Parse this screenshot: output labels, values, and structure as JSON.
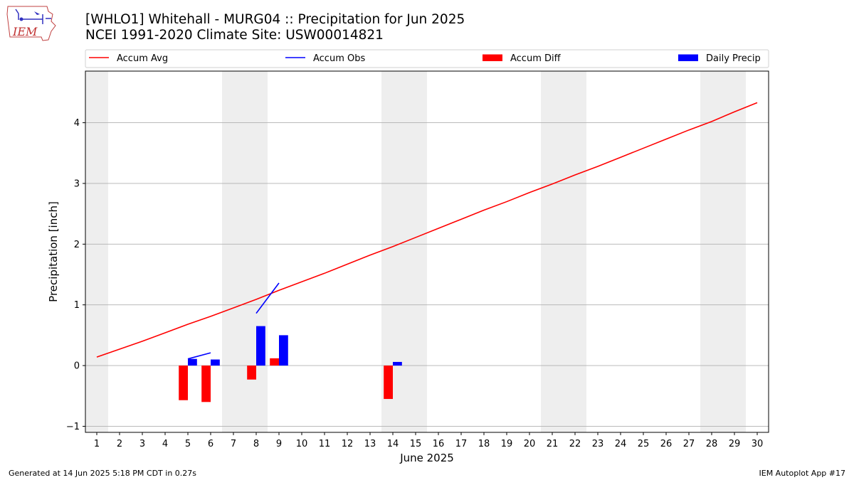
{
  "header": {
    "title_line1": "[WHLO1] Whitehall - MURG04 :: Precipitation for Jun 2025",
    "title_line2": "NCEI 1991-2020 Climate Site: USW00014821",
    "logo_text": "IEM"
  },
  "footer": {
    "generated": "Generated at 14 Jun 2025 5:18 PM CDT in 0.27s",
    "app": "IEM Autoplot App #17"
  },
  "colors": {
    "accum_avg": "#ff0000",
    "accum_obs": "#0000ff",
    "accum_diff": "#ff0000",
    "daily_precip": "#0000ff",
    "weekend_shade": "#eeeeee",
    "grid": "#b0b0b0"
  },
  "chart_data": {
    "type": "bar",
    "title": "[WHLO1] Whitehall - MURG04 :: Precipitation for Jun 2025",
    "xlabel": "June 2025",
    "ylabel": "Precipitation [inch]",
    "xlim": [
      0.5,
      30.5
    ],
    "ylim": [
      -1.1,
      4.85
    ],
    "x_ticks": [
      1,
      2,
      3,
      4,
      5,
      6,
      7,
      8,
      9,
      10,
      11,
      12,
      13,
      14,
      15,
      16,
      17,
      18,
      19,
      20,
      21,
      22,
      23,
      24,
      25,
      26,
      27,
      28,
      29,
      30
    ],
    "y_ticks": [
      -1,
      0,
      1,
      2,
      3,
      4
    ],
    "grid": "horizontal",
    "weekend_spans": [
      [
        0.5,
        1.5
      ],
      [
        6.5,
        8.5
      ],
      [
        13.5,
        15.5
      ],
      [
        20.5,
        22.5
      ],
      [
        27.5,
        29.5
      ]
    ],
    "legend": {
      "placement": "top",
      "entries": [
        {
          "label": "Accum Avg",
          "kind": "line",
          "color": "#ff0000"
        },
        {
          "label": "Accum Obs",
          "kind": "line",
          "color": "#0000ff"
        },
        {
          "label": "Accum Diff",
          "kind": "bar",
          "color": "#ff0000"
        },
        {
          "label": "Daily Precip",
          "kind": "bar",
          "color": "#0000ff"
        }
      ]
    },
    "series": [
      {
        "name": "Accum Avg",
        "kind": "line",
        "x": [
          1,
          2,
          3,
          4,
          5,
          6,
          7,
          8,
          9,
          10,
          11,
          12,
          13,
          14,
          15,
          16,
          17,
          18,
          19,
          20,
          21,
          22,
          23,
          24,
          25,
          26,
          27,
          28,
          29,
          30
        ],
        "values": [
          0.14,
          0.27,
          0.4,
          0.54,
          0.68,
          0.81,
          0.95,
          1.09,
          1.24,
          1.38,
          1.52,
          1.67,
          1.82,
          1.96,
          2.11,
          2.26,
          2.41,
          2.56,
          2.7,
          2.85,
          2.99,
          3.14,
          3.28,
          3.43,
          3.58,
          3.73,
          3.88,
          4.02,
          4.18,
          4.33
        ]
      },
      {
        "name": "Accum Obs",
        "kind": "line",
        "segments": [
          {
            "x": [
              5,
              6
            ],
            "values": [
              0.11,
              0.21
            ]
          },
          {
            "x": [
              8,
              9
            ],
            "values": [
              0.86,
              1.36
            ]
          }
        ]
      },
      {
        "name": "Accum Diff",
        "kind": "bar",
        "x": [
          5,
          6,
          8,
          9,
          14
        ],
        "values": [
          -0.57,
          -0.6,
          -0.23,
          0.12,
          -0.55
        ]
      },
      {
        "name": "Daily Precip",
        "kind": "bar",
        "x": [
          5,
          6,
          8,
          9,
          14
        ],
        "values": [
          0.11,
          0.1,
          0.65,
          0.5,
          0.06
        ]
      }
    ]
  }
}
